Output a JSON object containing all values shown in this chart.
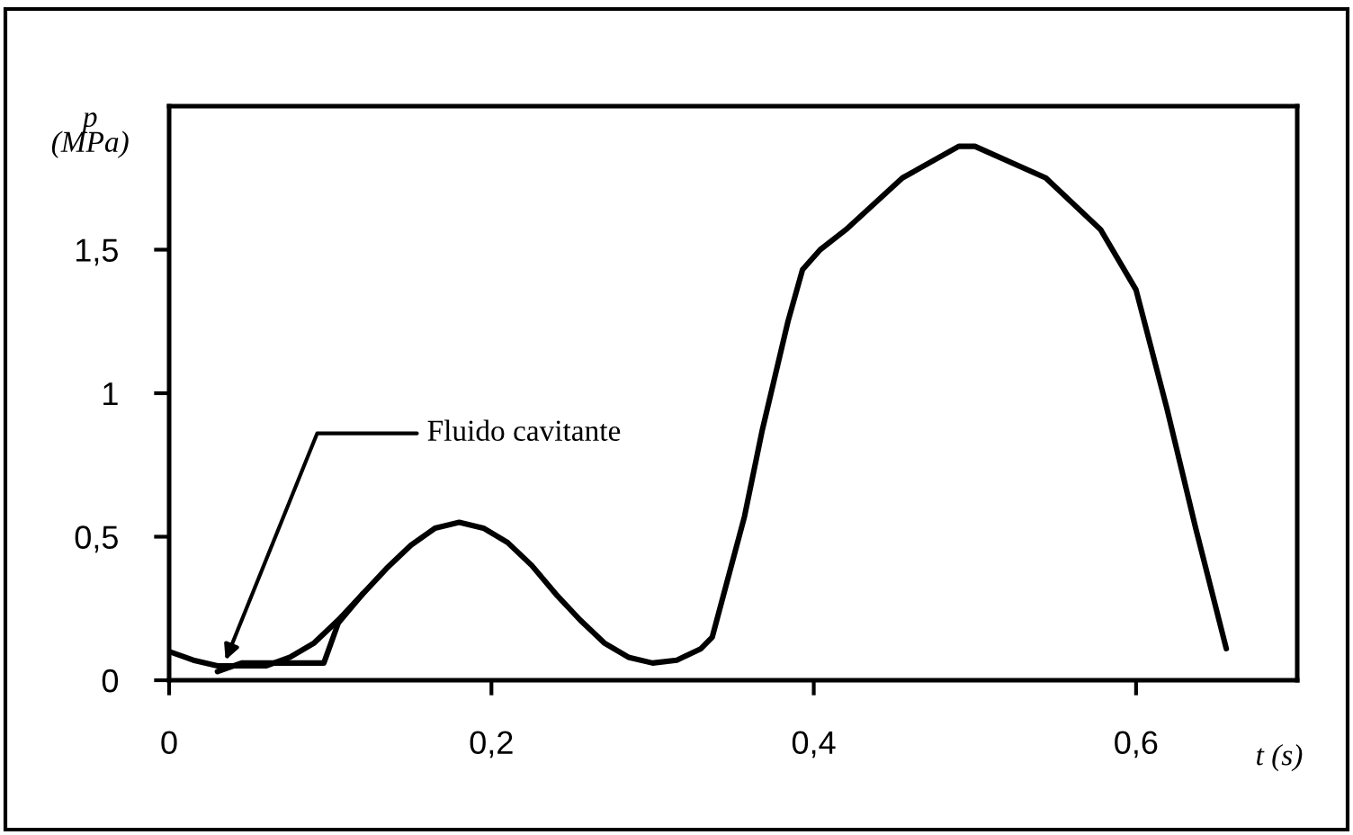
{
  "chart_data": {
    "type": "line",
    "xlabel": "t (s)",
    "ylabel": "p\n(MPa)",
    "xlim": [
      0,
      0.7
    ],
    "ylim": [
      0,
      2
    ],
    "xticks": [
      0,
      {
        "value": 0.2,
        "label": "0,2"
      },
      {
        "value": 0.4,
        "label": "0,4"
      },
      {
        "value": 0.6,
        "label": "0,6"
      }
    ],
    "yticks": [
      0,
      {
        "value": 0.5,
        "label": "0,5"
      },
      1,
      {
        "value": 1.5,
        "label": "1,5"
      }
    ],
    "grid": false,
    "marker": "none",
    "line_style": "solid",
    "series": [
      {
        "color": "#000000",
        "x": [
          0,
          0.015,
          0.03,
          0.045,
          0.06,
          0.075,
          0.09,
          0.105,
          0.12,
          0.135,
          0.15,
          0.165,
          0.18,
          0.195,
          0.21,
          0.225,
          0.24,
          0.255,
          0.27,
          0.285,
          0.3,
          0.315,
          0.33,
          0.337,
          0.357,
          0.368,
          0.384,
          0.393,
          0.404,
          0.42,
          0.455,
          0.49,
          0.5,
          0.544,
          0.578,
          0.6,
          0.619,
          0.637,
          0.656
        ],
        "values": [
          0.1,
          0.07,
          0.05,
          0.05,
          0.05,
          0.08,
          0.13,
          0.21,
          0.3,
          0.39,
          0.47,
          0.53,
          0.55,
          0.53,
          0.48,
          0.4,
          0.3,
          0.21,
          0.13,
          0.08,
          0.06,
          0.07,
          0.11,
          0.15,
          0.57,
          0.87,
          1.25,
          1.43,
          1.5,
          1.57,
          1.75,
          1.86,
          1.86,
          1.75,
          1.57,
          1.36,
          0.95,
          0.53,
          0.11
        ]
      },
      {
        "color": "#000000",
        "x": [
          0.03,
          0.045,
          0.096,
          0.105,
          0.12
        ],
        "values": [
          0.03,
          0.06,
          0.06,
          0.2,
          0.3
        ]
      }
    ],
    "annotations": [
      {
        "text": "Fluido cavitante",
        "x": 0.035,
        "y": 0.07
      }
    ]
  }
}
